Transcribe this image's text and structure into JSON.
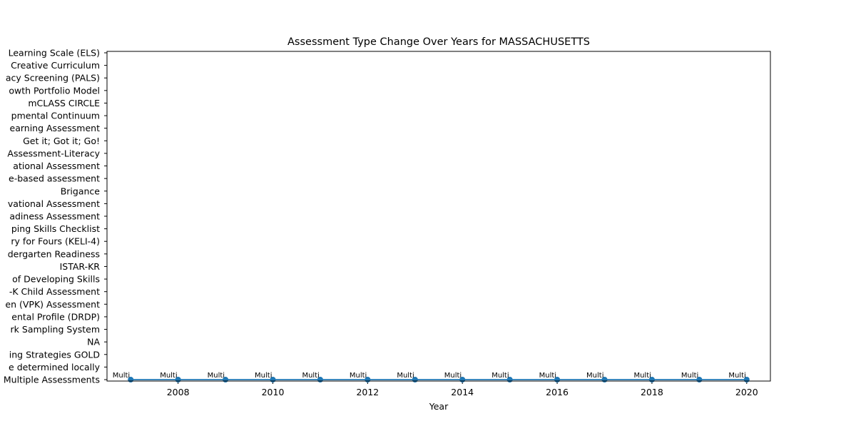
{
  "chart_data": {
    "type": "line",
    "title": "Assessment Type Change Over Years for MASSACHUSETTS",
    "xlabel": "Year",
    "ylabel": "",
    "x_ticks": [
      2008,
      2010,
      2012,
      2014,
      2016,
      2018,
      2020
    ],
    "xlim": [
      2006.5,
      2020.5
    ],
    "y_categories": [
      "Multiple Assessments",
      "e determined locally",
      "ing Strategies GOLD",
      "NA",
      "rk Sampling System",
      "ental Profile (DRDP)",
      "en (VPK) Assessment",
      "-K Child Assessment",
      "of Developing Skills",
      "ISTAR-KR",
      "dergarten Readiness",
      "ry for Fours (KELI-4) ",
      "ping Skills Checklist",
      "adiness Assessment",
      "vational Assessment",
      "Brigance",
      "e-based assessment",
      "ational Assessment ",
      "Assessment-Literacy",
      "Get it; Got it; Go!",
      "earning Assessment",
      "pmental Continuum",
      "mCLASS CIRCLE",
      "owth Portfolio Model",
      "acy Screening (PALS)",
      "Creative Curriculum",
      "Learning Scale (ELS)"
    ],
    "series": [
      {
        "x": [
          2007,
          2008,
          2009,
          2010,
          2011,
          2012,
          2013,
          2014,
          2015,
          2016,
          2017,
          2018,
          2019,
          2020
        ],
        "y": [
          "Multiple Assessments",
          "Multiple Assessments",
          "Multiple Assessments",
          "Multiple Assessments",
          "Multiple Assessments",
          "Multiple Assessments",
          "Multiple Assessments",
          "Multiple Assessments",
          "Multiple Assessments",
          "Multiple Assessments",
          "Multiple Assessments",
          "Multiple Assessments",
          "Multiple Assessments",
          "Multiple Assessments"
        ],
        "point_labels": [
          "Multi",
          "Multi",
          "Multi",
          "Multi",
          "Multi",
          "Multi",
          "Multi",
          "Multi",
          "Multi",
          "Multi",
          "Multi",
          "Multi",
          "Multi",
          "Multi"
        ]
      }
    ],
    "color": "#1f77b4",
    "grid": false,
    "legend": "none"
  }
}
